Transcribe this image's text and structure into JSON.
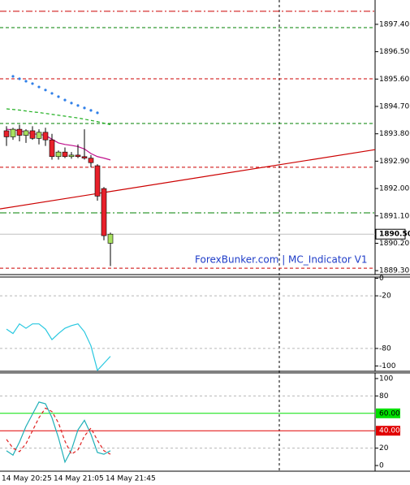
{
  "chart_data": [
    {
      "type": "candlestick",
      "categories": [
        "14 May 20:25",
        null,
        null,
        null,
        null,
        null,
        null,
        null,
        "14 May 21:05",
        null,
        null,
        null,
        null,
        null,
        null,
        null,
        "14 May 21:45"
      ],
      "open": [
        1893.9,
        1893.7,
        1893.95,
        1893.75,
        1893.9,
        1893.65,
        1893.85,
        1893.6,
        1893.05,
        1893.2,
        1893.05,
        1893.1,
        1893.05,
        1893.0,
        1892.75,
        1892.0,
        1890.2
      ],
      "high": [
        1894.05,
        1894.0,
        1894.1,
        1893.95,
        1894.05,
        1893.95,
        1894.0,
        1893.8,
        1893.25,
        1893.35,
        1893.2,
        1893.45,
        1893.95,
        1893.1,
        1892.8,
        1892.05,
        1890.55
      ],
      "low": [
        1893.4,
        1893.6,
        1893.55,
        1893.5,
        1893.6,
        1893.45,
        1893.4,
        1892.95,
        1892.95,
        1893.0,
        1892.98,
        1893.0,
        1892.95,
        1892.7,
        1891.6,
        1890.3,
        1889.45
      ],
      "close": [
        1893.7,
        1893.95,
        1893.75,
        1893.9,
        1893.65,
        1893.85,
        1893.6,
        1893.05,
        1893.2,
        1893.05,
        1893.1,
        1893.05,
        1893.0,
        1892.85,
        1891.75,
        1890.45,
        1890.5
      ],
      "bull_color": "#a8e05f",
      "bear_color": "#e8202a",
      "series": [
        {
          "color": "#2f7fe8",
          "style": "dots",
          "values": [
            null,
            1895.69,
            1895.61,
            1895.53,
            1895.45,
            1895.34,
            1895.24,
            1895.13,
            1895.02,
            1894.91,
            1894.81,
            1894.73,
            1894.65,
            1894.57,
            1894.49,
            null,
            null
          ]
        },
        {
          "color": "#22b022",
          "style": "dash",
          "values": [
            1894.62,
            1894.6,
            1894.58,
            1894.55,
            1894.52,
            1894.5,
            1894.47,
            1894.44,
            1894.41,
            1894.38,
            1894.35,
            1894.32,
            1894.28,
            1894.24,
            1894.2,
            1894.15,
            1894.1
          ]
        },
        {
          "color": "#c0108c",
          "style": "line",
          "values": [
            1893.95,
            1893.93,
            1893.9,
            1893.85,
            1893.8,
            1893.78,
            1893.75,
            1893.62,
            1893.5,
            1893.45,
            1893.42,
            1893.38,
            1893.3,
            1893.15,
            1893.05,
            1893.0,
            1892.94
          ]
        }
      ],
      "levels": [
        {
          "value": 1897.83,
          "color": "#cc0000",
          "style": "dashdot"
        },
        {
          "value": 1897.29,
          "color": "#008000",
          "style": "dash"
        },
        {
          "value": 1895.61,
          "color": "#cc0000",
          "style": "dash"
        },
        {
          "value": 1894.14,
          "color": "#008000",
          "style": "dash"
        },
        {
          "value": 1892.7,
          "color": "#cc0000",
          "style": "dash"
        },
        {
          "value": 1891.2,
          "color": "#008000",
          "style": "dashdot"
        },
        {
          "value": 1889.38,
          "color": "#cc0000",
          "style": "dash"
        }
      ],
      "trendline": [
        1891.33,
        1893.28
      ],
      "trend_color": "#cc0000",
      "current": {
        "value": 1890.5,
        "label": "1890.50"
      },
      "watermark": "ForexBunker.com | MC_Indicator V1",
      "ylim": [
        1889.17,
        1898.2
      ],
      "yticks": [
        {
          "value": 1897.4,
          "label": "1897.40"
        },
        {
          "value": 1896.5,
          "label": "1896.50"
        },
        {
          "value": 1895.6,
          "label": "1895.60"
        },
        {
          "value": 1894.7,
          "label": "1894.70"
        },
        {
          "value": 1893.8,
          "label": "1893.80"
        },
        {
          "value": 1892.9,
          "label": "1892.90"
        },
        {
          "value": 1892.0,
          "label": "1892.00"
        },
        {
          "value": 1891.1,
          "label": "1891.10"
        },
        {
          "value": 1890.2,
          "label": "1890.20"
        },
        {
          "value": 1889.3,
          "label": "1889.30"
        }
      ]
    },
    {
      "type": "line",
      "series": [
        {
          "color": "#28c8e0",
          "style": "line",
          "values": [
            -58,
            -63,
            -52,
            -57,
            -52,
            -52,
            -58,
            -70,
            -63,
            -57,
            -54,
            -52,
            -61,
            -77,
            -105,
            -97,
            -89
          ]
        }
      ],
      "ylim": [
        -106,
        1.4
      ],
      "yticks": [
        0,
        -20,
        -80,
        -100
      ],
      "grid": [
        -20,
        -80
      ]
    },
    {
      "type": "line",
      "series": [
        {
          "color": "#20b0b8",
          "style": "line",
          "values": [
            17,
            12,
            27,
            45,
            59,
            73,
            71,
            55,
            32,
            4,
            18,
            41,
            52,
            36,
            15,
            13,
            17
          ]
        },
        {
          "color": "#e02020",
          "style": "dash",
          "values": [
            30,
            20,
            16,
            25,
            40,
            55,
            66,
            62,
            49,
            28,
            13,
            18,
            34,
            43,
            29,
            17,
            13
          ]
        }
      ],
      "levels": [
        {
          "value": 60,
          "label": "60.00",
          "color": "#00e000",
          "text_color": "#000000"
        },
        {
          "value": 40,
          "label": "40.00",
          "color": "#e00000",
          "text_color": "#ffffff"
        }
      ],
      "ylim": [
        -6.5,
        106.5
      ],
      "yticks": [
        0,
        20,
        80,
        100
      ],
      "grid": [
        20,
        80
      ]
    }
  ]
}
